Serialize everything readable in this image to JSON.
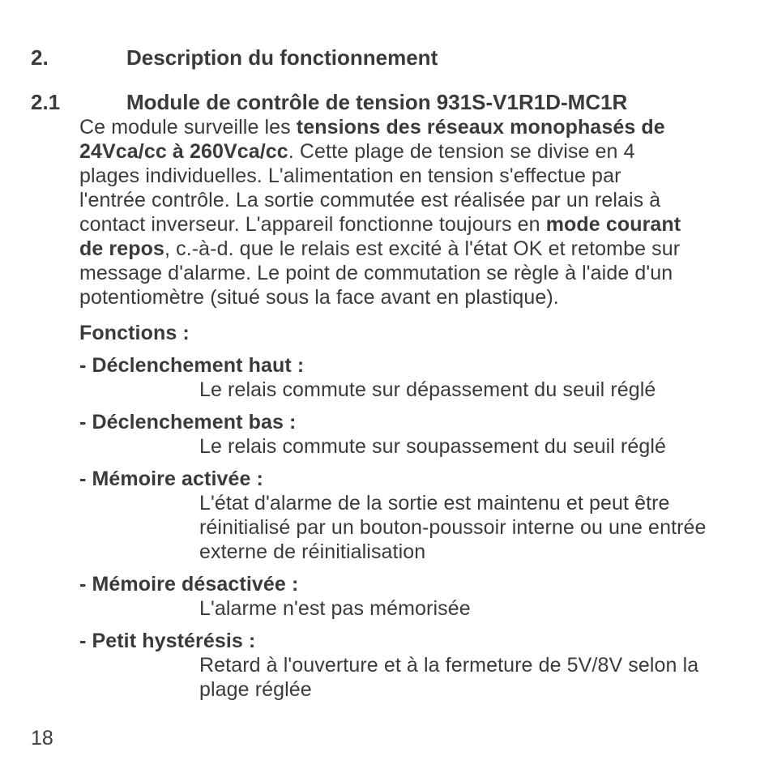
{
  "page_number": "18",
  "section": {
    "num": "2.",
    "title": "Description du fonctionnement"
  },
  "subsection": {
    "num": "2.1",
    "title": "Module de contrôle de tension 931S-V1R1D-MC1R",
    "para_pre1": "Ce module surveille les ",
    "para_b1": "tensions des réseaux monophasés de 24Vca/cc à 260Vca/cc",
    "para_mid": ". Cette plage de tension se divise en 4 plages individuelles. L'alimentation en tension s'effectue par l'entrée contrôle. La sortie commutée est réalisée par un relais à contact inverseur. L'appareil fonctionne toujours en ",
    "para_b2": "mode courant de repos",
    "para_post": ", c.-à-d. que le relais est excité à l'état OK et retombe sur message d'alarme. Le point de commutation se règle à l'aide d'un potentiomètre (situé sous la face avant en plastique)."
  },
  "functions_heading": "Fonctions :",
  "functions": [
    {
      "title": "- Déclenchement haut :",
      "desc": "Le relais commute sur dépassement du seuil réglé"
    },
    {
      "title": "- Déclenchement bas :",
      "desc": "Le relais commute sur soupassement du seuil réglé"
    },
    {
      "title": "- Mémoire activée :",
      "desc": "L'état d'alarme de la sortie est maintenu et peut être réinitialisé par un bouton-poussoir interne ou une entrée externe de réinitialisation"
    },
    {
      "title": "- Mémoire désactivée :",
      "desc": "L'alarme n'est pas mémorisée"
    },
    {
      "title": "- Petit hystérésis :",
      "desc": "Retard à l'ouverture et à la fermeture de 5V/8V selon la plage réglée"
    }
  ]
}
